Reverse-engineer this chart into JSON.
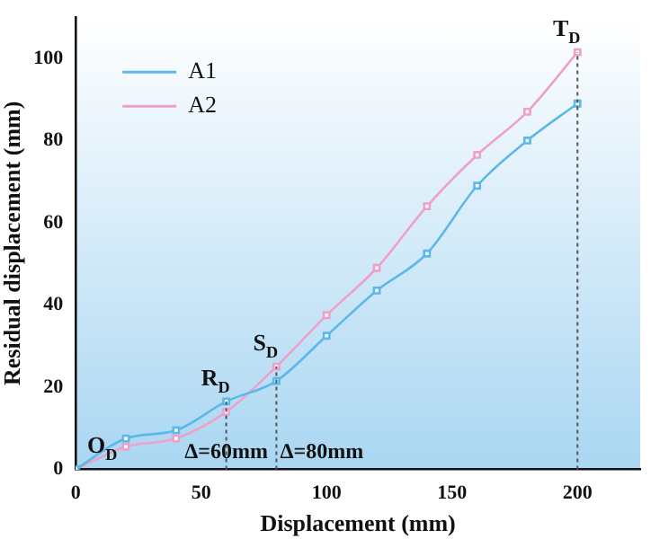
{
  "chart_data": {
    "type": "line",
    "xlabel": "Displacement (mm)",
    "ylabel": "Residual displacement (mm)",
    "x": [
      0,
      20,
      40,
      60,
      80,
      100,
      120,
      140,
      160,
      180,
      200
    ],
    "series": [
      {
        "name": "A1",
        "color": "#5bb8e8",
        "values": [
          0,
          7.5,
          9.5,
          16.5,
          21.5,
          32.5,
          43.5,
          52.5,
          69,
          80,
          89
        ]
      },
      {
        "name": "A2",
        "color": "#f0a0c8",
        "values": [
          0,
          5.5,
          7.5,
          14,
          25,
          37.5,
          49,
          64,
          76.5,
          87,
          101.5
        ]
      }
    ],
    "xlim": [
      0,
      225
    ],
    "xticks": [
      0,
      50,
      100,
      150,
      200
    ],
    "ylim": [
      0,
      110
    ],
    "yticks": [
      0,
      20,
      40,
      60,
      80,
      100
    ],
    "grid": false,
    "legend": "top left",
    "marker": "square",
    "line_style": "solid",
    "ref_lines": [
      {
        "axis": "x",
        "value": 60,
        "label": "Δ=60mm",
        "line_style": "dotted"
      },
      {
        "axis": "x",
        "value": 80,
        "label": "Δ=80mm",
        "line_style": "dotted"
      },
      {
        "axis": "x",
        "value": 200,
        "line_style": "dotted"
      }
    ],
    "annotations": [
      {
        "text": "O$_{D}$",
        "x": 0,
        "y": 0
      },
      {
        "text": "R$_{D}$",
        "x": 60,
        "y": 16.5
      },
      {
        "text": "S$_{D}$",
        "x": 80,
        "y": 25
      },
      {
        "text": "T$_{D}$",
        "x": 200,
        "y": 101.5
      }
    ]
  }
}
